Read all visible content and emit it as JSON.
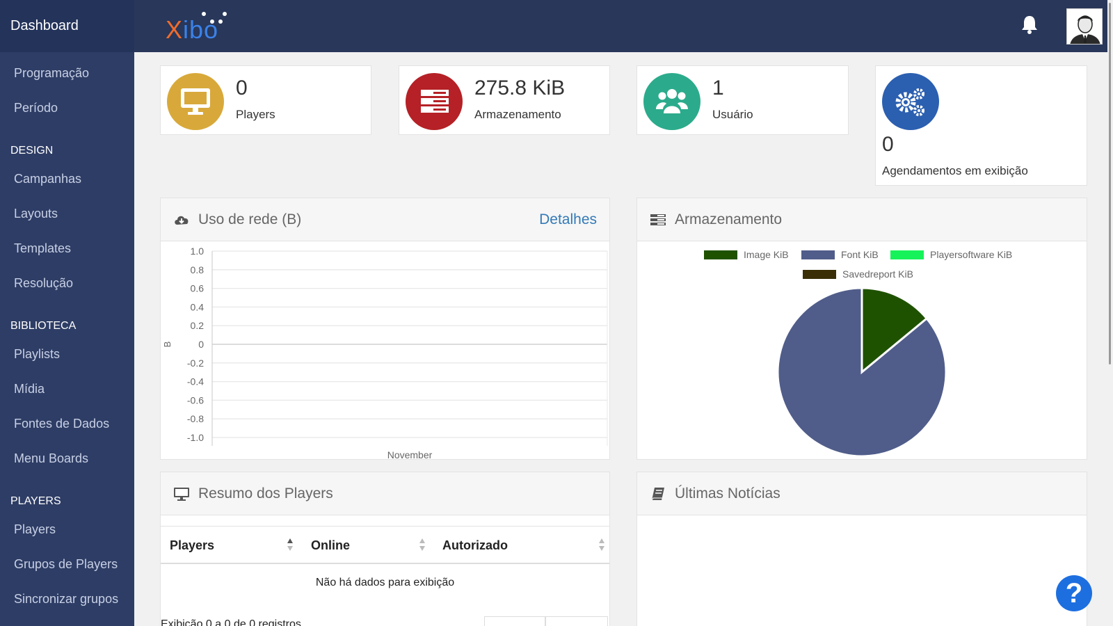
{
  "header": {
    "brand": "Dashboard",
    "logo_x": "X",
    "logo_rest": "ibo",
    "icons": [
      "bell-icon",
      "user-avatar"
    ]
  },
  "sidebar": {
    "items": [
      {
        "type": "item",
        "label": "Programação"
      },
      {
        "type": "item",
        "label": "Período"
      },
      {
        "type": "header",
        "label": "DESIGN"
      },
      {
        "type": "item",
        "label": "Campanhas"
      },
      {
        "type": "item",
        "label": "Layouts"
      },
      {
        "type": "item",
        "label": "Templates"
      },
      {
        "type": "item",
        "label": "Resolução"
      },
      {
        "type": "header",
        "label": "BIBLIOTECA"
      },
      {
        "type": "item",
        "label": "Playlists"
      },
      {
        "type": "item",
        "label": "Mídia"
      },
      {
        "type": "item",
        "label": "Fontes de Dados"
      },
      {
        "type": "item",
        "label": "Menu Boards"
      },
      {
        "type": "header",
        "label": "PLAYERS"
      },
      {
        "type": "item",
        "label": "Players"
      },
      {
        "type": "item",
        "label": "Grupos de Players"
      },
      {
        "type": "item",
        "label": "Sincronizar grupos"
      }
    ]
  },
  "stats": [
    {
      "value": "0",
      "label": "Players",
      "color": "#d8a93a",
      "icon": "monitor-icon"
    },
    {
      "value": "275.8 KiB",
      "label": "Armazenamento",
      "color": "#b52126",
      "icon": "server-icon"
    },
    {
      "value": "1",
      "label": "Usuário",
      "color": "#2bab8c",
      "icon": "users-icon"
    },
    {
      "value": "0",
      "label": "Agendamentos em exibição",
      "color": "#2b5fb0",
      "icon": "gears-icon"
    }
  ],
  "network_panel": {
    "title": "Uso de rede (B)",
    "link": "Detalhes",
    "icon": "cloud-download-icon"
  },
  "storage_panel": {
    "title": "Armazenamento",
    "icon": "server-icon"
  },
  "players_panel": {
    "title": "Resumo dos Players",
    "icon": "monitor-icon",
    "columns": [
      "Players",
      "Online",
      "Autorizado"
    ],
    "empty_message": "Não há dados para exibição",
    "footer": "Exibição 0 a 0 de 0 registros"
  },
  "news_panel": {
    "title": "Últimas Notícias",
    "icon": "book-icon"
  },
  "help_button": {
    "label": "?"
  },
  "chart_data": [
    {
      "type": "line",
      "title": "",
      "xlabel": "",
      "ylabel": "B",
      "categories": [
        "November"
      ],
      "series": [],
      "ylim": [
        -1.0,
        1.0
      ],
      "y_ticks": [
        "1.0",
        "0.8",
        "0.6",
        "0.4",
        "0.2",
        "0",
        "-0.2",
        "-0.4",
        "-0.6",
        "-0.8",
        "-1.0"
      ],
      "grid": true
    },
    {
      "type": "pie",
      "title": "",
      "legend_placement": "top",
      "slices": [
        {
          "name": "Image KiB",
          "value": 14,
          "color": "#1f5200"
        },
        {
          "name": "Font KiB",
          "value": 86,
          "color": "#505d8a"
        },
        {
          "name": "Playersoftware KiB",
          "value": 0,
          "color": "#16f35a"
        },
        {
          "name": "Savedreport KiB",
          "value": 0,
          "color": "#3a2e07"
        }
      ]
    }
  ]
}
